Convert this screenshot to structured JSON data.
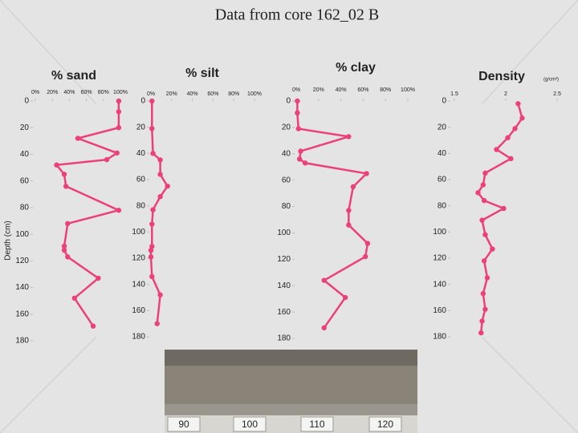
{
  "title": "Data from core 162_02 B",
  "y_axis_label": "Depth (cm)",
  "core_photo_labels": [
    "90",
    "100",
    "110",
    "120"
  ],
  "chart_data": [
    {
      "type": "line",
      "title": "% sand",
      "color": "#ec407a",
      "invert_y": true,
      "xlim": [
        0,
        100
      ],
      "xticks": [
        {
          "value": 0,
          "label": "0%"
        },
        {
          "value": 20,
          "label": "20%"
        },
        {
          "value": 40,
          "label": "40%"
        },
        {
          "value": 60,
          "label": "60%"
        },
        {
          "value": 80,
          "label": "80%"
        },
        {
          "value": 100,
          "label": "100%"
        }
      ],
      "ylim": [
        0,
        180
      ],
      "yticks": [
        0,
        20,
        40,
        60,
        80,
        100,
        120,
        140,
        160,
        180
      ],
      "depth": [
        0,
        8,
        20,
        28,
        39,
        44,
        48,
        55,
        64,
        82,
        92,
        109,
        112,
        117,
        133,
        148,
        169
      ],
      "values": [
        98,
        98,
        98,
        50,
        96,
        84,
        25,
        34,
        36,
        98,
        38,
        34,
        34,
        38,
        74,
        46,
        68
      ]
    },
    {
      "type": "line",
      "title": "% silt",
      "color": "#ec407a",
      "invert_y": true,
      "xlim": [
        0,
        100
      ],
      "xticks": [
        {
          "value": 0,
          "label": "0%"
        },
        {
          "value": 20,
          "label": "20%"
        },
        {
          "value": 40,
          "label": "40%"
        },
        {
          "value": 60,
          "label": "60%"
        },
        {
          "value": 80,
          "label": "80%"
        },
        {
          "value": 100,
          "label": "100%"
        }
      ],
      "ylim": [
        0,
        180
      ],
      "yticks": [
        0,
        20,
        40,
        60,
        80,
        100,
        120,
        140,
        160,
        180
      ],
      "depth": [
        0,
        21,
        40,
        45,
        56,
        65,
        73,
        83,
        94,
        111,
        114,
        119,
        134,
        148,
        170
      ],
      "values": [
        1,
        1,
        2,
        9,
        9,
        16,
        9,
        2,
        1,
        1,
        0,
        0,
        1,
        9,
        6
      ]
    },
    {
      "type": "line",
      "title": "% clay",
      "color": "#ec407a",
      "invert_y": true,
      "xlim": [
        0,
        100
      ],
      "xticks": [
        {
          "value": 0,
          "label": "0%"
        },
        {
          "value": 20,
          "label": "20%"
        },
        {
          "value": 40,
          "label": "40%"
        },
        {
          "value": 60,
          "label": "60%"
        },
        {
          "value": 80,
          "label": "80%"
        },
        {
          "value": 100,
          "label": "100%"
        }
      ],
      "ylim": [
        0,
        180
      ],
      "yticks": [
        0,
        20,
        40,
        60,
        80,
        100,
        120,
        140,
        160,
        180
      ],
      "depth": [
        0,
        9,
        21,
        27,
        38,
        44,
        47,
        55,
        65,
        83,
        94,
        108,
        118,
        136,
        149,
        172
      ],
      "values": [
        1,
        1,
        2,
        47,
        4,
        3,
        8,
        63,
        51,
        47,
        47,
        64,
        62,
        25,
        44,
        25
      ]
    },
    {
      "type": "line",
      "title": "Density",
      "unit": "(g/cm³)",
      "color": "#ec407a",
      "invert_y": true,
      "xlim": [
        1.5,
        2.5
      ],
      "xticks": [
        1.5,
        2,
        2.5
      ],
      "ylim": [
        0,
        180
      ],
      "yticks": [
        0,
        20,
        40,
        60,
        80,
        100,
        120,
        140,
        160,
        180
      ],
      "depth": [
        2,
        13,
        21,
        28,
        37,
        44,
        55,
        64,
        70,
        76,
        82,
        91,
        102,
        113,
        122,
        135,
        147,
        159,
        168,
        177
      ],
      "values": [
        2.12,
        2.16,
        2.09,
        2.02,
        1.91,
        2.05,
        1.8,
        1.78,
        1.73,
        1.79,
        1.98,
        1.77,
        1.8,
        1.87,
        1.79,
        1.82,
        1.78,
        1.8,
        1.77,
        1.76
      ]
    }
  ]
}
